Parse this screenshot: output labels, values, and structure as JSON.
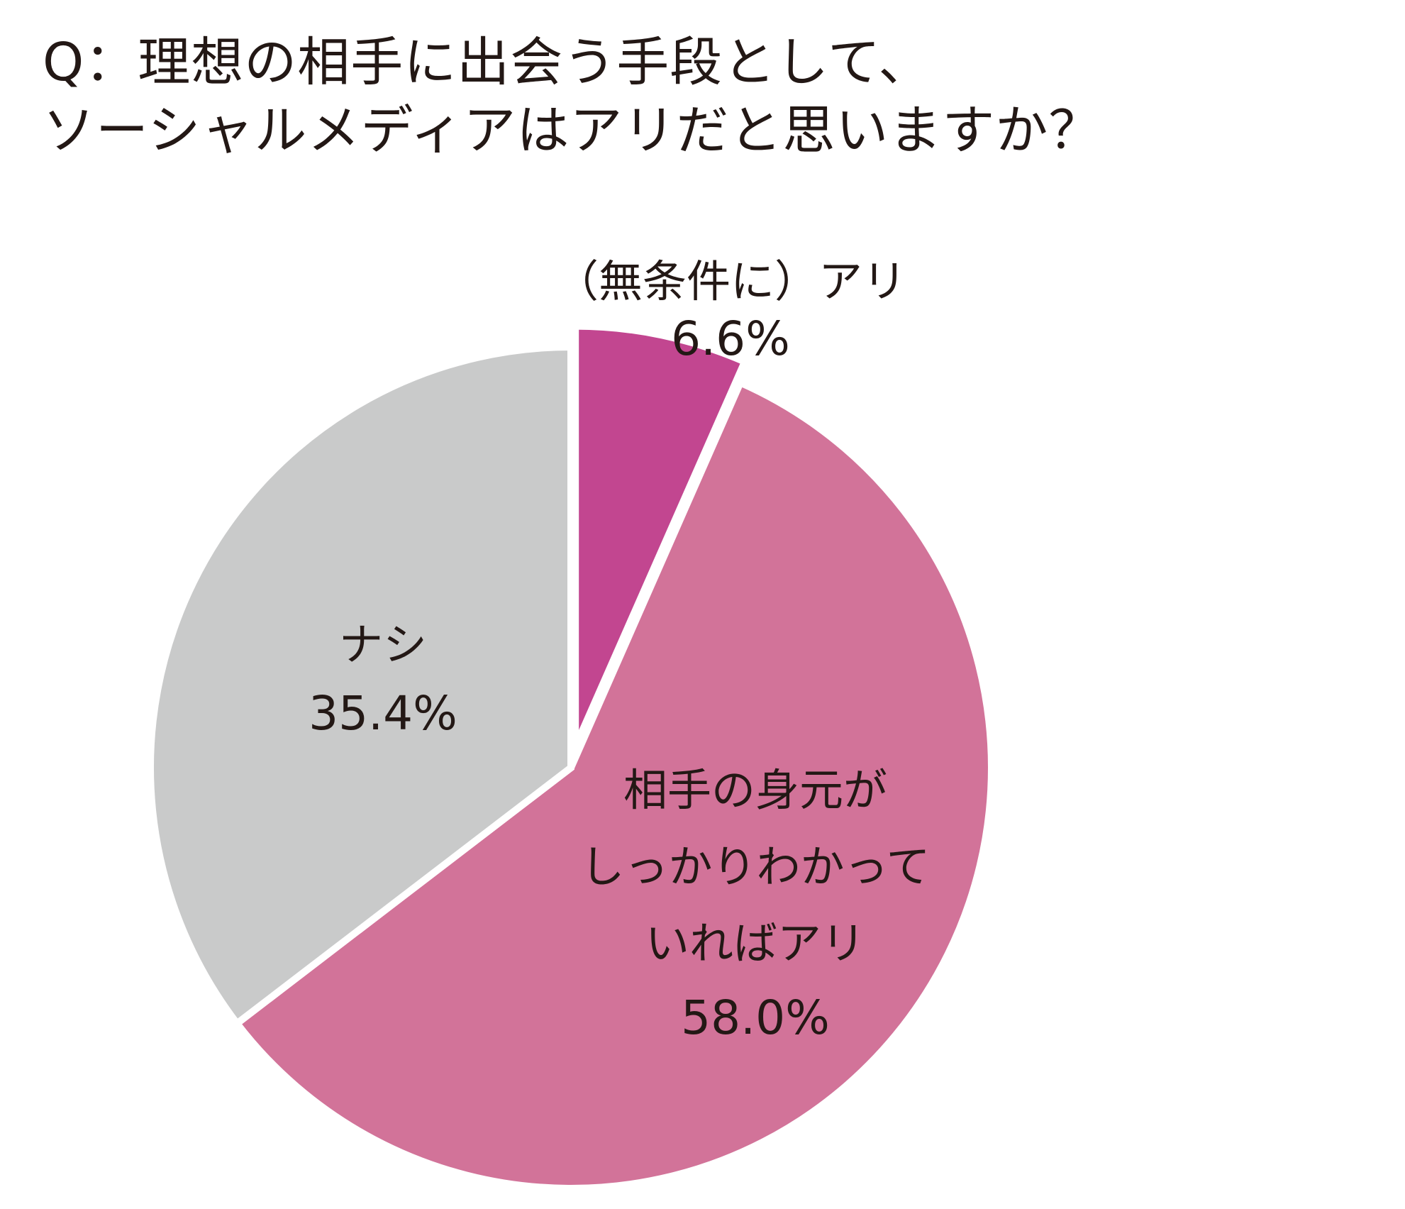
{
  "title": {
    "line1": "Q：理想の相手に出会う手段として、",
    "line2": "ソーシャルメディアはアリだと思いますか？"
  },
  "chart_data": {
    "type": "pie",
    "start": "12 o'clock",
    "direction": "clockwise",
    "slices": [
      {
        "label_lines": [
          "（無条件に）アリ"
        ],
        "value": 6.6,
        "value_label": "6.6%",
        "color": "#c24690",
        "exploded": true
      },
      {
        "label_lines": [
          "相手の身元が",
          "しっかりわかって",
          "いればアリ"
        ],
        "value": 58.0,
        "value_label": "58.0%",
        "color": "#d27399",
        "exploded": false
      },
      {
        "label_lines": [
          "ナシ"
        ],
        "value": 35.4,
        "value_label": "35.4%",
        "color": "#c9caca",
        "exploded": false
      }
    ]
  }
}
